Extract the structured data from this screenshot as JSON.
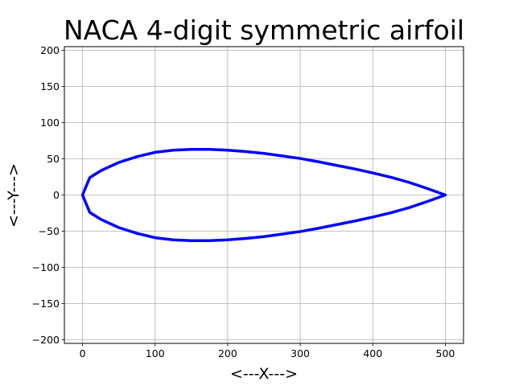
{
  "chart_data": {
    "type": "line",
    "title": "NACA 4-digit symmetric airfoil",
    "xlabel": "<---X--->",
    "ylabel": "<---Y--->",
    "xlim": [
      -25,
      525
    ],
    "ylim": [
      -205,
      205
    ],
    "xticks": [
      0,
      100,
      200,
      300,
      400,
      500
    ],
    "yticks": [
      -200,
      -150,
      -100,
      -50,
      0,
      50,
      100,
      150,
      200
    ],
    "grid": true,
    "legend": "none",
    "series": [
      {
        "color": "#0000ff",
        "x": [
          500,
          475,
          450,
          425,
          400,
          375,
          350,
          325,
          300,
          275,
          250,
          225,
          200,
          175,
          150,
          125,
          100,
          75,
          50,
          25,
          10,
          0,
          10,
          25,
          50,
          75,
          100,
          125,
          150,
          175,
          200,
          225,
          250,
          275,
          300,
          325,
          350,
          375,
          400,
          425,
          450,
          475,
          500
        ],
        "y": [
          0,
          9,
          17.5,
          24.5,
          30.5,
          36,
          41,
          46,
          50.5,
          54,
          57.5,
          60,
          62,
          63,
          63,
          62,
          59,
          53,
          45,
          33.5,
          24,
          0,
          -24,
          -33.5,
          -45,
          -53,
          -59,
          -62,
          -63,
          -63,
          -62,
          -60,
          -57.5,
          -54,
          -50.5,
          -46,
          -41,
          -36,
          -30.5,
          -24.5,
          -17.5,
          -9,
          0
        ]
      }
    ]
  }
}
